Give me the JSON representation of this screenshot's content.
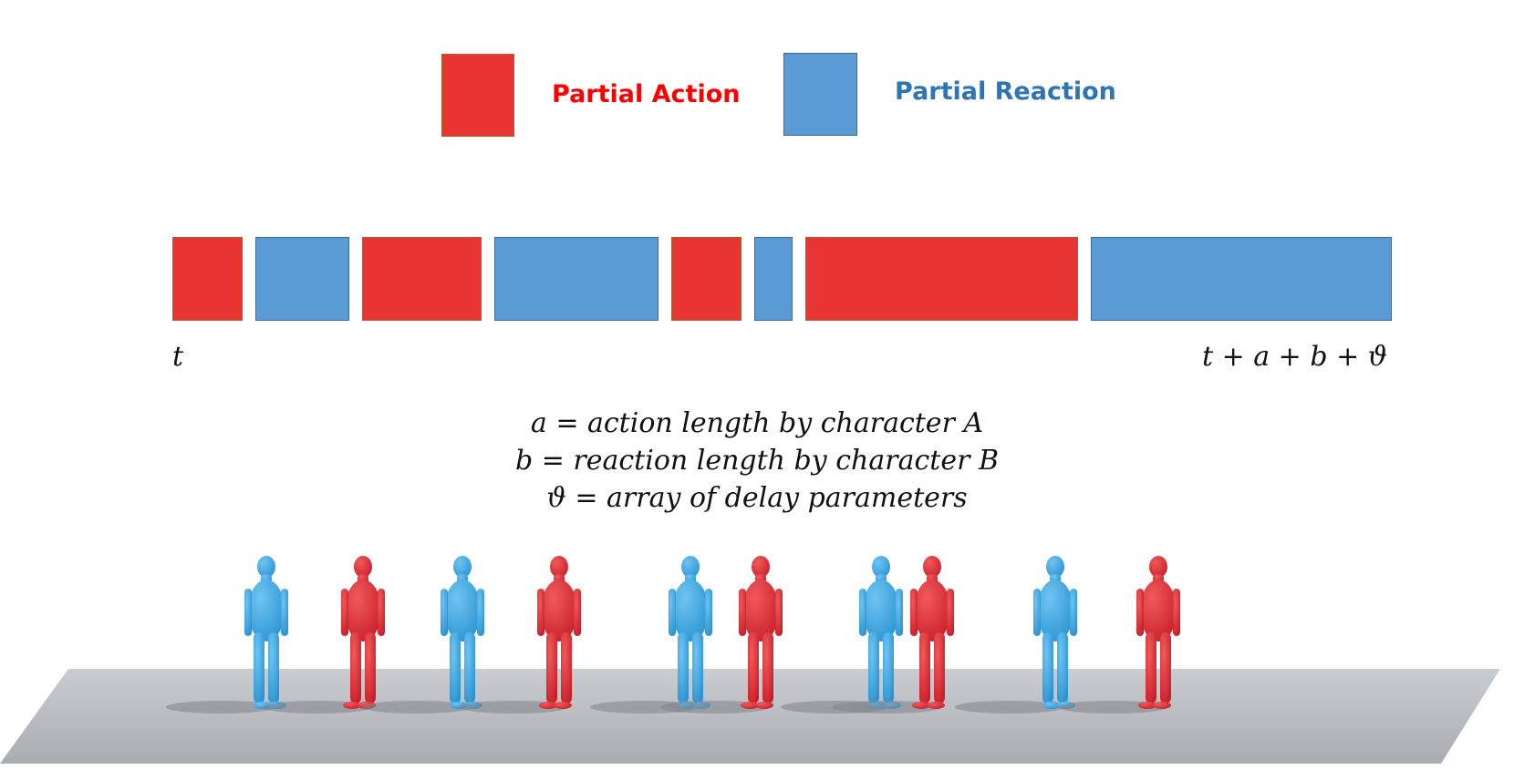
{
  "colors": {
    "action": "#E93434",
    "action_border": "#A2632C",
    "reaction": "#5B9BD5",
    "reaction_border": "#3C6A9E",
    "action_text": "#FF0000",
    "reaction_text": "#2E75B6",
    "floor": "#BFC3C7"
  },
  "legend": {
    "action_label": "Partial Action",
    "reaction_label": "Partial Reaction"
  },
  "timeline": {
    "start_label": "t",
    "end_label": "t + a + b + ϑ",
    "segments": [
      {
        "kind": "action",
        "length": 1.0
      },
      {
        "kind": "reaction",
        "length": 1.35
      },
      {
        "kind": "action",
        "length": 1.7
      },
      {
        "kind": "reaction",
        "length": 2.35
      },
      {
        "kind": "action",
        "length": 1.0
      },
      {
        "kind": "reaction",
        "length": 0.55
      },
      {
        "kind": "action",
        "length": 3.9
      },
      {
        "kind": "reaction",
        "length": 4.3
      }
    ]
  },
  "definitions": [
    "a = action length by character A",
    "b = reaction length by character B",
    "ϑ = array of delay parameters"
  ],
  "scene": {
    "figures": [
      {
        "character": "B",
        "color": "reaction"
      },
      {
        "character": "A",
        "color": "action"
      },
      {
        "character": "B",
        "color": "reaction"
      },
      {
        "character": "A",
        "color": "action"
      },
      {
        "character": "B",
        "color": "reaction"
      },
      {
        "character": "A",
        "color": "action"
      },
      {
        "character": "B",
        "color": "reaction"
      },
      {
        "character": "A",
        "color": "action"
      },
      {
        "character": "B",
        "color": "reaction"
      },
      {
        "character": "A",
        "color": "action"
      }
    ]
  }
}
